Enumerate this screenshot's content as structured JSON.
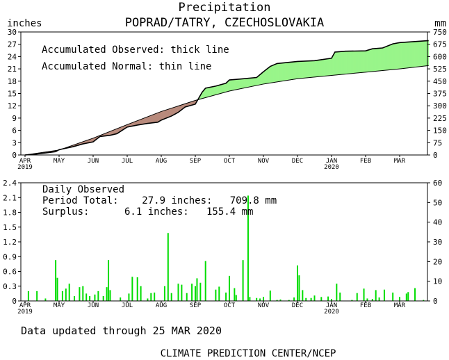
{
  "chart_data": [
    {
      "type": "area",
      "title": "Precipitation",
      "subtitle": "POPRAD/TATRY, CZECHOSLOVAKIA",
      "ylabel_left": "inches",
      "ylabel_right": "mm",
      "ylim_left": [
        0,
        30
      ],
      "ylim_right": [
        0,
        750
      ],
      "yticks_left": [
        "0",
        "3",
        "6",
        "9",
        "12",
        "15",
        "18",
        "21",
        "24",
        "27",
        "30"
      ],
      "yticks_right": [
        "0",
        "75",
        "150",
        "225",
        "300",
        "375",
        "450",
        "525",
        "600",
        "675",
        "750"
      ],
      "months": [
        "APR",
        "MAY",
        "JUN",
        "JUL",
        "AUG",
        "SEP",
        "OCT",
        "NOV",
        "DEC",
        "JAN",
        "FEB",
        "MAR"
      ],
      "years": [
        {
          "month_index": 0,
          "label": "2019"
        },
        {
          "month_index": 9,
          "label": "2020"
        }
      ],
      "annotations": [
        "Accumulated Observed: thick line",
        "Accumulated Normal: thin line"
      ],
      "x_unit": "months since start of April 2019",
      "x_max": 11.85,
      "series": [
        {
          "name": "Accumulated Observed",
          "points": [
            [
              0,
              0
            ],
            [
              0.3,
              0.2
            ],
            [
              0.6,
              0.5
            ],
            [
              0.9,
              0.8
            ],
            [
              1,
              1.3
            ],
            [
              1.4,
              2.0
            ],
            [
              1.7,
              2.7
            ],
            [
              2,
              3.2
            ],
            [
              2.2,
              4.5
            ],
            [
              2.5,
              4.8
            ],
            [
              2.7,
              5.2
            ],
            [
              3,
              6.8
            ],
            [
              3.3,
              7.3
            ],
            [
              3.6,
              7.7
            ],
            [
              3.9,
              8.0
            ],
            [
              4,
              8.5
            ],
            [
              4.3,
              9.5
            ],
            [
              4.5,
              10.4
            ],
            [
              4.7,
              11.7
            ],
            [
              5,
              12.4
            ],
            [
              5.2,
              15.3
            ],
            [
              5.3,
              16.3
            ],
            [
              5.6,
              16.8
            ],
            [
              5.9,
              17.5
            ],
            [
              6,
              18.3
            ],
            [
              6.3,
              18.5
            ],
            [
              6.8,
              18.9
            ],
            [
              7,
              20.3
            ],
            [
              7.2,
              21.6
            ],
            [
              7.4,
              22.3
            ],
            [
              8,
              22.8
            ],
            [
              8.5,
              23.0
            ],
            [
              9,
              23.6
            ],
            [
              9.1,
              25.1
            ],
            [
              9.4,
              25.3
            ],
            [
              10,
              25.4
            ],
            [
              10.2,
              25.9
            ],
            [
              10.5,
              26.1
            ],
            [
              10.8,
              27.1
            ],
            [
              11,
              27.4
            ],
            [
              11.85,
              27.9
            ]
          ]
        },
        {
          "name": "Accumulated Normal",
          "points": [
            [
              0,
              0
            ],
            [
              1,
              1.2
            ],
            [
              2,
              4.1
            ],
            [
              3,
              7.4
            ],
            [
              4,
              10.6
            ],
            [
              5,
              13.3
            ],
            [
              6,
              15.6
            ],
            [
              7,
              17.3
            ],
            [
              8,
              18.6
            ],
            [
              9,
              19.4
            ],
            [
              10,
              20.2
            ],
            [
              11,
              21.0
            ],
            [
              11.85,
              21.8
            ]
          ]
        }
      ]
    },
    {
      "type": "bar",
      "title": "Daily Observed",
      "ylim_left": [
        0,
        2.4
      ],
      "ylim_right": [
        0,
        60
      ],
      "yticks_left": [
        "0",
        "0.3",
        "0.6",
        "0.9",
        "1.2",
        "1.5",
        "1.8",
        "2.1",
        "2.4"
      ],
      "yticks_right": [
        "0",
        "10",
        "20",
        "30",
        "40",
        "50",
        "60"
      ],
      "months": [
        "APR",
        "MAY",
        "JUN",
        "JUL",
        "AUG",
        "SEP",
        "OCT",
        "NOV",
        "DEC",
        "JAN",
        "FEB",
        "MAR"
      ],
      "years": [
        {
          "month_index": 0,
          "label": "2019"
        },
        {
          "month_index": 9,
          "label": "2020"
        }
      ],
      "x_unit": "months since start of April 2019",
      "values": [
        [
          0.1,
          0.2
        ],
        [
          0.35,
          0.2
        ],
        [
          0.6,
          0.05
        ],
        [
          0.9,
          0.83
        ],
        [
          0.95,
          0.47
        ],
        [
          1.1,
          0.2
        ],
        [
          1.2,
          0.25
        ],
        [
          1.3,
          0.35
        ],
        [
          1.45,
          0.1
        ],
        [
          1.6,
          0.28
        ],
        [
          1.7,
          0.3
        ],
        [
          1.8,
          0.15
        ],
        [
          1.9,
          0.1
        ],
        [
          2.05,
          0.13
        ],
        [
          2.15,
          0.2
        ],
        [
          2.3,
          0.1
        ],
        [
          2.4,
          0.28
        ],
        [
          2.45,
          0.83
        ],
        [
          2.5,
          0.22
        ],
        [
          2.8,
          0.07
        ],
        [
          3.05,
          0.15
        ],
        [
          3.15,
          0.49
        ],
        [
          3.3,
          0.48
        ],
        [
          3.4,
          0.3
        ],
        [
          3.6,
          0.05
        ],
        [
          3.7,
          0.16
        ],
        [
          3.8,
          0.17
        ],
        [
          4.1,
          0.3
        ],
        [
          4.2,
          1.38
        ],
        [
          4.3,
          0.16
        ],
        [
          4.5,
          0.35
        ],
        [
          4.6,
          0.33
        ],
        [
          4.75,
          0.16
        ],
        [
          4.9,
          0.35
        ],
        [
          5.0,
          0.3
        ],
        [
          5.05,
          0.46
        ],
        [
          5.15,
          0.37
        ],
        [
          5.3,
          0.81
        ],
        [
          5.6,
          0.23
        ],
        [
          5.7,
          0.29
        ],
        [
          5.9,
          0.17
        ],
        [
          6.0,
          0.51
        ],
        [
          6.15,
          0.26
        ],
        [
          6.2,
          0.12
        ],
        [
          6.4,
          0.83
        ],
        [
          6.55,
          2.14
        ],
        [
          6.6,
          0.08
        ],
        [
          6.8,
          0.06
        ],
        [
          6.9,
          0.05
        ],
        [
          7.0,
          0.08
        ],
        [
          7.2,
          0.21
        ],
        [
          7.4,
          0.02
        ],
        [
          7.5,
          0.03
        ],
        [
          7.75,
          0.02
        ],
        [
          7.9,
          0.07
        ],
        [
          8.0,
          0.72
        ],
        [
          8.05,
          0.52
        ],
        [
          8.15,
          0.22
        ],
        [
          8.25,
          0.06
        ],
        [
          8.4,
          0.06
        ],
        [
          8.5,
          0.11
        ],
        [
          8.7,
          0.08
        ],
        [
          8.9,
          0.09
        ],
        [
          9.0,
          0.04
        ],
        [
          9.15,
          0.35
        ],
        [
          9.25,
          0.17
        ],
        [
          9.6,
          0.02
        ],
        [
          9.75,
          0.16
        ],
        [
          9.95,
          0.25
        ],
        [
          10.05,
          0.05
        ],
        [
          10.2,
          0.04
        ],
        [
          10.3,
          0.22
        ],
        [
          10.4,
          0.07
        ],
        [
          10.55,
          0.23
        ],
        [
          10.8,
          0.17
        ],
        [
          11.0,
          0.08
        ],
        [
          11.2,
          0.15
        ],
        [
          11.25,
          0.18
        ],
        [
          11.45,
          0.26
        ],
        [
          11.7,
          0.02
        ]
      ]
    }
  ],
  "footer": {
    "updated": "Data updated through 25 MAR 2020",
    "credit": "CLIMATE PREDICTION CENTER/NCEP"
  },
  "panel2_text": {
    "label": "Daily Observed",
    "total": "Period Total:    27.9 inches:   709.8 mm",
    "surplus": "Surplus:      6.1 inches:   155.4 mm"
  },
  "colors": {
    "surplus_fill": "#99f58a",
    "deficit_fill": "#b88a7c",
    "bar": "#00dd00",
    "line": "#000000"
  }
}
